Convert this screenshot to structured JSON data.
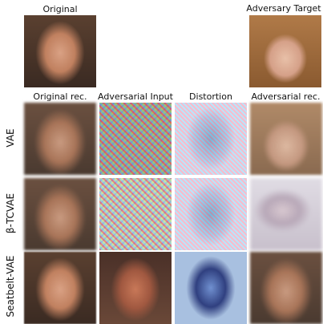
{
  "header": {
    "original": "Original",
    "target": "Adversary Target"
  },
  "columns": [
    "Original rec.",
    "Adversarial Input",
    "Distortion",
    "Adversarial rec."
  ],
  "rows": [
    "VAE",
    "β-TCVAE",
    "Seatbelt-VAE"
  ]
}
